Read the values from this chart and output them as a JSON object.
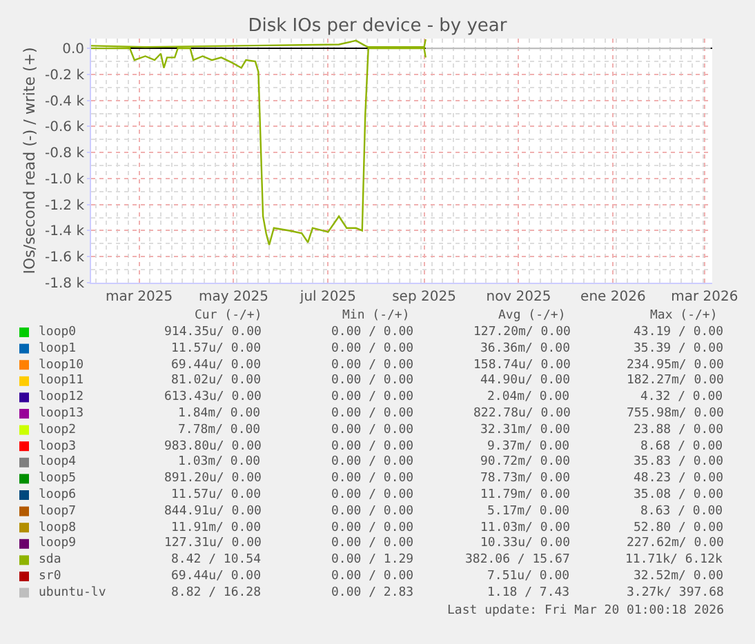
{
  "chart_data": {
    "type": "line",
    "title": "Disk IOs per device - by year",
    "ylabel": "IOs/second read (-) / write (+)",
    "xlim": [
      "2025-02-13",
      "2026-03-21"
    ],
    "xticks": [
      {
        "value": "2025-03-16",
        "label": "mar 2025"
      },
      {
        "value": "2025-05-16",
        "label": "may 2025"
      },
      {
        "value": "2025-07-16",
        "label": "jul 2025"
      },
      {
        "value": "2025-09-16",
        "label": "sep 2025"
      },
      {
        "value": "2025-11-16",
        "label": "nov 2025"
      },
      {
        "value": "2026-01-16",
        "label": "ene 2026"
      },
      {
        "value": "2026-03-16",
        "label": "mar 2026"
      }
    ],
    "ylim": [
      -1800,
      75
    ],
    "yticks": [
      {
        "value": 0,
        "label": "0.0"
      },
      {
        "value": -200,
        "label": "-0.2 k"
      },
      {
        "value": -400,
        "label": "-0.4 k"
      },
      {
        "value": -600,
        "label": "-0.6 k"
      },
      {
        "value": -800,
        "label": "-0.8 k"
      },
      {
        "value": -1000,
        "label": "-1.0 k"
      },
      {
        "value": -1200,
        "label": "-1.2 k"
      },
      {
        "value": -1400,
        "label": "-1.4 k"
      },
      {
        "value": -1600,
        "label": "-1.6 k"
      },
      {
        "value": -1800,
        "label": "-1.8 k"
      }
    ],
    "grid": true,
    "legend": "bottom",
    "line_style": "solid",
    "marker": "none",
    "series": [
      {
        "name": "loop0",
        "color": "#00cc00",
        "values": [
          null
        ]
      },
      {
        "name": "loop1",
        "color": "#0066b3",
        "values": [
          null
        ]
      },
      {
        "name": "loop10",
        "color": "#ff8000",
        "values": [
          null
        ]
      },
      {
        "name": "loop11",
        "color": "#ffcc00",
        "values": [
          null
        ]
      },
      {
        "name": "loop12",
        "color": "#330099",
        "values": [
          null
        ]
      },
      {
        "name": "loop13",
        "color": "#990099",
        "values": [
          null
        ]
      },
      {
        "name": "loop2",
        "color": "#ccff00",
        "values": [
          null
        ]
      },
      {
        "name": "loop3",
        "color": "#ff0000",
        "values": [
          null
        ]
      },
      {
        "name": "loop4",
        "color": "#808080",
        "values": [
          null
        ]
      },
      {
        "name": "loop5",
        "color": "#008f00",
        "values": [
          null
        ]
      },
      {
        "name": "loop6",
        "color": "#00487d",
        "values": [
          null
        ]
      },
      {
        "name": "loop7",
        "color": "#b35a00",
        "values": [
          null
        ]
      },
      {
        "name": "loop8",
        "color": "#b38f00",
        "values": [
          null
        ]
      },
      {
        "name": "loop9",
        "color": "#6b006b",
        "values": [
          null
        ]
      },
      {
        "name": "sda",
        "color": "#8fb300",
        "x": [
          "2025-02-13",
          "2025-03-10",
          "2025-03-13",
          "2025-03-20",
          "2025-03-26",
          "2025-03-30",
          "2025-04-01",
          "2025-04-03",
          "2025-04-08",
          "2025-04-10",
          "2025-04-18",
          "2025-04-20",
          "2025-04-26",
          "2025-05-02",
          "2025-05-08",
          "2025-05-15",
          "2025-05-21",
          "2025-05-24",
          "2025-05-30",
          "2025-06-01",
          "2025-06-04",
          "2025-06-06",
          "2025-06-08",
          "2025-06-11",
          "2025-06-21",
          "2025-06-29",
          "2025-07-03",
          "2025-07-06",
          "2025-07-16",
          "2025-07-23",
          "2025-07-28",
          "2025-08-03",
          "2025-08-07",
          "2025-08-09",
          "2025-08-11",
          "2025-09-16",
          "2025-09-17"
        ],
        "values": [
          0,
          0,
          -90,
          -60,
          -90,
          -40,
          -150,
          -70,
          -70,
          0,
          0,
          -90,
          -60,
          -90,
          -70,
          -110,
          -150,
          -90,
          -100,
          -180,
          -1290,
          -1420,
          -1510,
          -1380,
          -1400,
          -1420,
          -1490,
          -1380,
          -1410,
          -1290,
          -1380,
          -1380,
          -1400,
          -510,
          0,
          0,
          -70
        ]
      },
      {
        "color": "#8fb300",
        "x": [
          "2025-02-13",
          "2025-03-20",
          "2025-05-21",
          "2025-07-23",
          "2025-08-03",
          "2025-08-09",
          "2025-08-11",
          "2025-09-16",
          "2025-09-17"
        ],
        "values": [
          20,
          10,
          20,
          30,
          60,
          20,
          10,
          10,
          70
        ]
      },
      {
        "name": "sr0",
        "color": "#b30000",
        "values": [
          null
        ]
      },
      {
        "name": "ubuntu-lv",
        "color": "#bebebe",
        "x": [
          "2025-09-17",
          "2026-03-20"
        ],
        "values": [
          0,
          0
        ]
      }
    ],
    "annotations": [
      "Cur (-/+)",
      "Min (-/+)",
      "Avg (-/+)",
      "Max (-/+)",
      "914.35u/ 0.00",
      "0.00 / 0.00",
      "127.20m/ 0.00",
      "43.19 / 0.00",
      "11.57u/ 0.00",
      "0.00 / 0.00",
      "36.36m/ 0.00",
      "35.39 / 0.00",
      "69.44u/ 0.00",
      "0.00 / 0.00",
      "158.74u/ 0.00",
      "234.95m/ 0.00",
      "81.02u/ 0.00",
      "0.00 / 0.00",
      "44.90u/ 0.00",
      "182.27m/ 0.00",
      "613.43u/ 0.00",
      "0.00 / 0.00",
      "2.04m/ 0.00",
      "4.32 / 0.00",
      "1.84m/ 0.00",
      "0.00 / 0.00",
      "822.78u/ 0.00",
      "755.98m/ 0.00",
      "7.78m/ 0.00",
      "0.00 / 0.00",
      "32.31m/ 0.00",
      "23.88 / 0.00",
      "983.80u/ 0.00",
      "0.00 / 0.00",
      "9.37m/ 0.00",
      "8.68 / 0.00",
      "1.03m/ 0.00",
      "0.00 / 0.00",
      "90.72m/ 0.00",
      "35.83 / 0.00",
      "891.20u/ 0.00",
      "0.00 / 0.00",
      "78.73m/ 0.00",
      "48.23 / 0.00",
      "11.57u/ 0.00",
      "0.00 / 0.00",
      "11.79m/ 0.00",
      "35.08 / 0.00",
      "844.91u/ 0.00",
      "0.00 / 0.00",
      "5.17m/ 0.00",
      "8.63 / 0.00",
      "11.91m/ 0.00",
      "0.00 / 0.00",
      "11.03m/ 0.00",
      "52.80 / 0.00",
      "127.31u/ 0.00",
      "0.00 / 0.00",
      "10.33u/ 0.00",
      "227.62m/ 0.00",
      "8.42 / 10.54",
      "0.00 / 1.29",
      "382.06 / 15.67",
      "11.71k/ 6.12k",
      "69.44u/ 0.00",
      "0.00 / 0.00",
      "7.51u/ 0.00",
      "32.52m/ 0.00",
      "8.82 / 16.28",
      "0.00 / 2.83",
      "1.18 / 7.43",
      "3.27k/ 397.68",
      "Last update: Fri Mar 20 01:00:18 2026"
    ]
  }
}
